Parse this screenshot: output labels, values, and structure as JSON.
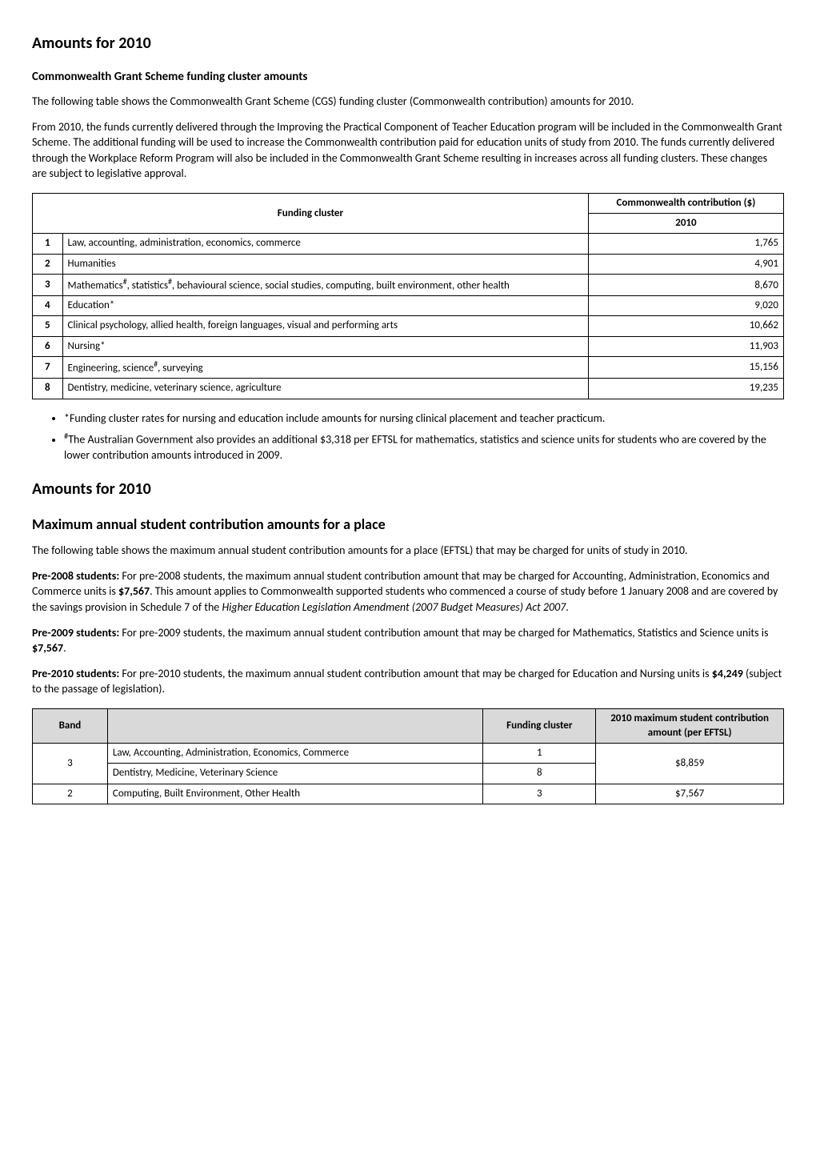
{
  "heading1": "Amounts for 2010",
  "section1": {
    "subheading": "Commonwealth Grant Scheme funding cluster amounts",
    "p1": "The following table shows the Commonwealth Grant Scheme (CGS) funding cluster (Commonwealth contribution) amounts for 2010.",
    "p2": "From 2010, the funds currently delivered through the Improving the Practical Component of Teacher Education program will be included in the Commonwealth Grant Scheme. The additional funding will be used to increase the Commonwealth contribution paid for education units of study from 2010. The funds currently delivered through the Workplace Reform Program will also be included in the Commonwealth Grant Scheme resulting in increases across all funding clusters. These changes are subject to legislative approval."
  },
  "table1": {
    "header_funding_cluster": "Funding cluster",
    "header_commonwealth": "Commonwealth contribution ($)",
    "header_year": "2010",
    "rows": [
      {
        "n": "1",
        "desc": "Law, accounting, administration, economics, commerce",
        "val": "1,765"
      },
      {
        "n": "2",
        "desc": "Humanities",
        "val": "4,901"
      },
      {
        "n": "3",
        "desc_html": "Mathematics<sup>#</sup>, statistics<sup>#</sup>, behavioural science, social studies, computing, built environment, other health",
        "val": "8,670"
      },
      {
        "n": "4",
        "desc": "Education*",
        "val": "9,020"
      },
      {
        "n": "5",
        "desc": "Clinical psychology, allied health, foreign languages, visual and performing arts",
        "val": "10,662"
      },
      {
        "n": "6",
        "desc": "Nursing*",
        "val": "11,903"
      },
      {
        "n": "7",
        "desc_html": "Engineering, science<sup>#</sup>, surveying",
        "val": "15,156"
      },
      {
        "n": "8",
        "desc": "Dentistry, medicine, veterinary science, agriculture",
        "val": "19,235"
      }
    ]
  },
  "bullets": {
    "b1": "*Funding cluster rates for nursing and education include amounts for nursing clinical placement and teacher practicum.",
    "b2_html": "<sup>#</sup>The Australian Government also provides an additional $3,318 per EFTSL for mathematics, statistics and science units for students who are covered by the lower contribution amounts introduced in 2009."
  },
  "heading2": "Amounts for 2010",
  "section2": {
    "subheading": "Maximum annual student contribution amounts for a place",
    "p1": "The following table shows the maximum annual student contribution amounts for a place (EFTSL) that may be charged for units of study in 2010.",
    "p2_label": "Pre-2008 students:",
    "p2_text_a": "  For pre-2008 students, the maximum annual student contribution amount that may be charged for Accounting, Administration, Economics and Commerce units is ",
    "p2_bold": "$7,567",
    "p2_text_b": ".  This amount applies to Commonwealth supported students who commenced a course of study before 1 January 2008 and are covered by the savings provision in Schedule 7 of the ",
    "p2_italic": "Higher Education Legislation Amendment (2007 Budget Measures) Act 2007",
    "p2_end": ".",
    "p3_label": "Pre-2009 students:",
    "p3_text_a": " For pre-2009 students, the maximum annual student contribution amount that may be charged for Mathematics, Statistics and Science units is ",
    "p3_bold": "$7,567",
    "p3_end": ".",
    "p4_label": "Pre-2010 students:",
    "p4_text_a": " For pre-2010 students, the maximum annual student contribution amount that may be charged for Education and Nursing units is ",
    "p4_bold": "$4,249",
    "p4_end": " (subject to the passage of legislation)."
  },
  "table2": {
    "headers": {
      "band": "Band",
      "blank": "",
      "funding_cluster": "Funding cluster",
      "max_contrib": "2010 maximum student contribution amount (per EFTSL)"
    },
    "rows": [
      {
        "band": "3",
        "desc": "Law, Accounting, Administration, Economics, Commerce",
        "cluster": "1",
        "amount": "$8,859"
      },
      {
        "desc": "Dentistry, Medicine, Veterinary Science",
        "cluster": "8"
      },
      {
        "band": "2",
        "desc": "Computing, Built Environment, Other Health",
        "cluster": "3",
        "amount": "$7,567"
      }
    ]
  }
}
